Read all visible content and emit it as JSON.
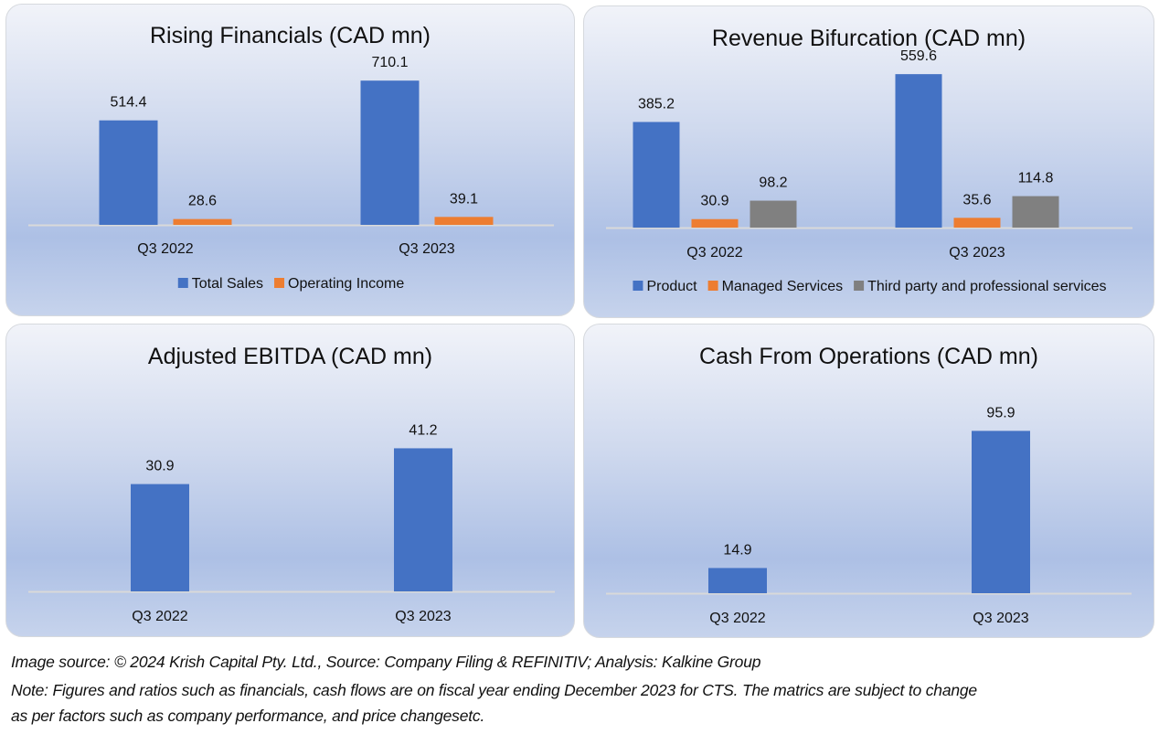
{
  "chart_data": [
    {
      "type": "bar",
      "title": "Rising Financials (CAD mn)",
      "categories": [
        "Q3 2022",
        "Q3 2023"
      ],
      "series": [
        {
          "name": "Total Sales",
          "values": [
            514.4,
            710.1
          ],
          "color": "#4472c4"
        },
        {
          "name": "Operating Income",
          "values": [
            28.6,
            39.1
          ],
          "color": "#ed7d31"
        }
      ],
      "xlabel": "",
      "ylabel": "",
      "ylim": [
        0,
        900
      ],
      "grid": false,
      "legend": "bottom"
    },
    {
      "type": "bar",
      "title": "Revenue Bifurcation (CAD mn)",
      "categories": [
        "Q3 2022",
        "Q3 2023"
      ],
      "series": [
        {
          "name": "Product",
          "values": [
            385.2,
            559.6
          ],
          "color": "#4472c4"
        },
        {
          "name": "Managed Services",
          "values": [
            30.9,
            35.6
          ],
          "color": "#ed7d31"
        },
        {
          "name": "Third party and professional services",
          "values": [
            98.2,
            114.8
          ],
          "color": "#808080"
        }
      ],
      "xlabel": "",
      "ylabel": "",
      "ylim": [
        0,
        700
      ],
      "grid": false,
      "legend": "bottom"
    },
    {
      "type": "bar",
      "title": "Adjusted EBITDA (CAD mn)",
      "categories": [
        "Q3 2022",
        "Q3 2023"
      ],
      "series": [
        {
          "name": "Adjusted EBITDA",
          "values": [
            30.9,
            41.2
          ],
          "color": "#4472c4"
        }
      ],
      "xlabel": "",
      "ylabel": "",
      "ylim": [
        0,
        55
      ],
      "grid": false,
      "legend": "none"
    },
    {
      "type": "bar",
      "title": "Cash From Operations (CAD mn)",
      "categories": [
        "Q3 2022",
        "Q3 2023"
      ],
      "series": [
        {
          "name": "Cash From Operations",
          "values": [
            14.9,
            95.9
          ],
          "color": "#4472c4"
        }
      ],
      "xlabel": "",
      "ylabel": "",
      "ylim": [
        0,
        115
      ],
      "grid": false,
      "legend": "none"
    }
  ],
  "footer": {
    "source": "Image source: © 2024 Krish Capital Pty. Ltd., Source: Company Filing & REFINITIV; Analysis: Kalkine Group",
    "note_line1": "Note: Figures and ratios such as financials, cash flows are on fiscal year ending December 2023 for CTS. The matrics are subject to change",
    "note_line2": "as per factors such as company performance, and price changesetc."
  }
}
